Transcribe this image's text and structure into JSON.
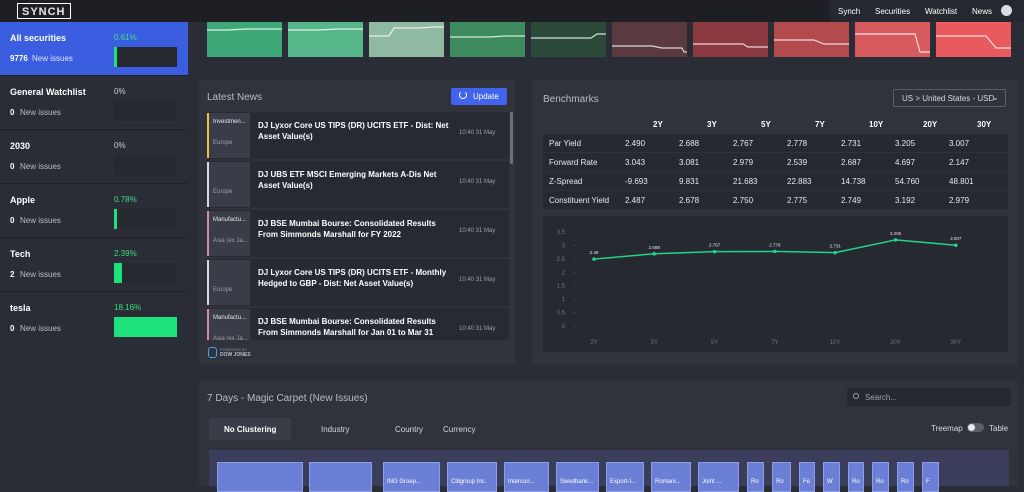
{
  "nav": {
    "logo": "SYNCH",
    "links": [
      "Synch",
      "Securities",
      "Watchlist",
      "News"
    ]
  },
  "sidebar": [
    {
      "name": "All securities",
      "change": "0.61%",
      "count": "9776",
      "count_label": "New issues"
    },
    {
      "name": "General Watchlist",
      "change": "0%",
      "count": "0",
      "count_label": "New issues"
    },
    {
      "name": "2030",
      "change": "0%",
      "count": "0",
      "count_label": "New issues"
    },
    {
      "name": "Apple",
      "change": "0.78%",
      "count": "0",
      "count_label": "New issues"
    },
    {
      "name": "Tech",
      "change": "2.39%",
      "count": "2",
      "count_label": "New issues"
    },
    {
      "name": "tesla",
      "change": "18.16%",
      "count": "0",
      "count_label": "New issues"
    }
  ],
  "news": {
    "title": "Latest News",
    "button": "Update",
    "items": [
      {
        "tag": "Investmen...",
        "region": "Europe",
        "headline": "DJ Lyxor Core US TIPS (DR) UCITS ETF - Dist: Net Asset Value(s)",
        "time": "10:40 31 May"
      },
      {
        "region": "Europe",
        "headline": "DJ UBS ETF MSCI Emerging Markets A-Dis Net Asset Value(s)",
        "time": "10:40 31 May"
      },
      {
        "tag": "Manufactu...",
        "region": "Asia (ex Ja...",
        "headline": "DJ BSE Mumbai Bourse: Consolidated Results From Simmonds Marshall for FY 2022",
        "time": "10:40 31 May"
      },
      {
        "region": "Europe",
        "headline": "DJ Lyxor Core US TIPS (DR) UCITS ETF - Monthly Hedged to GBP - Dist: Net Asset Value(s)",
        "time": "10:40 31 May"
      },
      {
        "tag": "Manufactu...",
        "region": "Asia (ex Ja...",
        "headline": "DJ BSE Mumbai Bourse: Consolidated Results From Simmonds Marshall for Jan 01 to Mar 31",
        "time": "10:40 31 May"
      }
    ],
    "footer_small": "POWERED BY",
    "footer": "DOW JONES"
  },
  "benchmarks": {
    "title": "Benchmarks",
    "selector": "US > United States - USD",
    "columns": [
      "2Y",
      "3Y",
      "5Y",
      "7Y",
      "10Y",
      "20Y",
      "30Y"
    ],
    "rows": [
      {
        "label": "Par Yield",
        "cells": [
          "2.490",
          "2.688",
          "2.767",
          "2.778",
          "2.731",
          "3.205",
          "3.007"
        ]
      },
      {
        "label": "Forward Rate",
        "cells": [
          "3.043",
          "3.081",
          "2.979",
          "2.539",
          "2.687",
          "4.697",
          "2.147"
        ]
      },
      {
        "label": "Z-Spread",
        "cells": [
          "-9.693",
          "9.831",
          "21.683",
          "22.883",
          "14.738",
          "54.760",
          "48.801"
        ]
      },
      {
        "label": "Constituent Yield",
        "cells": [
          "2.487",
          "2.678",
          "2.750",
          "2.775",
          "2.749",
          "3.192",
          "2.979"
        ]
      }
    ]
  },
  "chart_data": {
    "type": "line",
    "categories": [
      "2Y",
      "3Y",
      "5Y",
      "7Y",
      "10Y",
      "20Y",
      "30Y"
    ],
    "values": [
      2.49,
      2.688,
      2.767,
      2.778,
      2.731,
      3.205,
      3.007
    ],
    "color": "#22d38a",
    "ylim": [
      0,
      3.5
    ],
    "yticks": [
      0,
      0.5,
      1,
      1.5,
      2,
      2.5,
      3,
      3.5
    ]
  },
  "magic_carpet": {
    "title": "7 Days - Magic Carpet (New Issues)",
    "search": "Search...",
    "tabs": [
      "No Clustering",
      "Industry",
      "Country",
      "Currency"
    ],
    "toggle_left": "Treemap",
    "toggle_right": "Table",
    "tiles": [
      "ING Groep...",
      "Citigroup Inc.",
      "Intercon...",
      "Swedbank...",
      "Export-I...",
      "Romani...",
      "Joint ...",
      "Ro",
      "Ro",
      "Fe",
      "W",
      "Ro",
      "Ro",
      "Ro",
      "F"
    ]
  }
}
